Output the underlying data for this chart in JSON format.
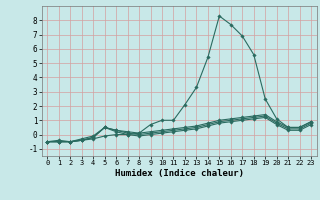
{
  "title": "",
  "xlabel": "Humidex (Indice chaleur)",
  "ylabel": "",
  "bg_color": "#c8e8e8",
  "grid_color": "#d4a0a0",
  "line_color": "#2a6b60",
  "xlim": [
    -0.5,
    23.5
  ],
  "ylim": [
    -1.5,
    9.0
  ],
  "xticks": [
    0,
    1,
    2,
    3,
    4,
    5,
    6,
    7,
    8,
    9,
    10,
    11,
    12,
    13,
    14,
    15,
    16,
    17,
    18,
    19,
    20,
    21,
    22,
    23
  ],
  "yticks": [
    -1,
    0,
    1,
    2,
    3,
    4,
    5,
    6,
    7,
    8
  ],
  "series": [
    {
      "x": [
        0,
        1,
        2,
        3,
        4,
        5,
        6,
        7,
        8,
        9,
        10,
        11,
        12,
        13,
        14,
        15,
        16,
        17,
        18,
        19,
        20,
        21,
        22,
        23
      ],
      "y": [
        -0.5,
        -0.4,
        -0.5,
        -0.3,
        -0.1,
        0.5,
        0.3,
        0.2,
        0.1,
        0.7,
        1.0,
        1.0,
        2.1,
        3.3,
        5.4,
        8.3,
        7.7,
        6.9,
        5.6,
        2.5,
        1.1,
        0.5,
        0.5,
        0.9
      ]
    },
    {
      "x": [
        0,
        1,
        2,
        3,
        4,
        5,
        6,
        7,
        8,
        9,
        10,
        11,
        12,
        13,
        14,
        15,
        16,
        17,
        18,
        19,
        20,
        21,
        22,
        23
      ],
      "y": [
        -0.5,
        -0.5,
        -0.5,
        -0.4,
        -0.3,
        -0.1,
        0.0,
        0.0,
        0.1,
        0.2,
        0.3,
        0.4,
        0.5,
        0.6,
        0.8,
        1.0,
        1.1,
        1.2,
        1.3,
        1.4,
        0.9,
        0.5,
        0.5,
        0.9
      ]
    },
    {
      "x": [
        0,
        1,
        2,
        3,
        4,
        5,
        6,
        7,
        8,
        9,
        10,
        11,
        12,
        13,
        14,
        15,
        16,
        17,
        18,
        19,
        20,
        21,
        22,
        23
      ],
      "y": [
        -0.5,
        -0.5,
        -0.5,
        -0.4,
        -0.2,
        0.5,
        0.3,
        0.1,
        0.0,
        0.1,
        0.2,
        0.3,
        0.4,
        0.5,
        0.7,
        0.9,
        1.0,
        1.1,
        1.2,
        1.3,
        0.8,
        0.4,
        0.4,
        0.8
      ]
    },
    {
      "x": [
        0,
        1,
        2,
        3,
        4,
        5,
        6,
        7,
        8,
        9,
        10,
        11,
        12,
        13,
        14,
        15,
        16,
        17,
        18,
        19,
        20,
        21,
        22,
        23
      ],
      "y": [
        -0.5,
        -0.5,
        -0.5,
        -0.4,
        -0.2,
        0.5,
        0.2,
        0.0,
        -0.1,
        0.0,
        0.1,
        0.2,
        0.3,
        0.4,
        0.6,
        0.8,
        0.9,
        1.0,
        1.1,
        1.2,
        0.7,
        0.3,
        0.3,
        0.7
      ]
    }
  ],
  "marker": "D",
  "marker_size": 1.8,
  "line_width": 0.8,
  "tick_fontsize": 5.0,
  "xlabel_fontsize": 6.5
}
